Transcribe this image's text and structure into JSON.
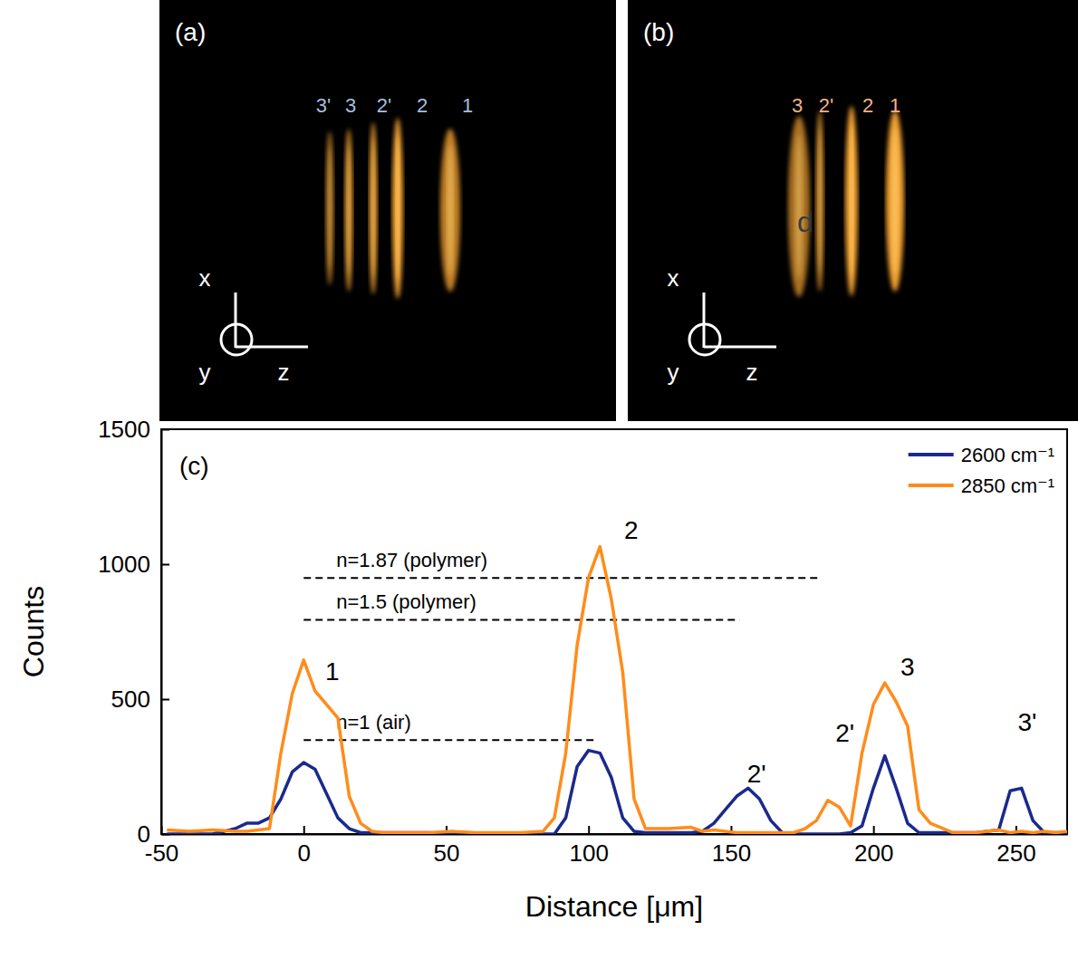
{
  "images": [
    {
      "letter": "(a)",
      "peak_labels": [
        "3'",
        "3",
        "2'",
        "2",
        "1"
      ],
      "axis_labels": {
        "x": "x",
        "y": "y",
        "z": "z"
      }
    },
    {
      "letter": "(b)",
      "peak_labels": [
        "3",
        "2'",
        "2",
        "1"
      ],
      "axis_labels": {
        "x": "x",
        "y": "y",
        "z": "z"
      },
      "annotation": "d"
    }
  ],
  "chart_data": {
    "type": "line",
    "panel_label": "(c)",
    "xlabel": "Distance [μm]",
    "ylabel": "Counts",
    "x": [
      -48,
      -40,
      -32,
      -24,
      -20,
      -16,
      -12,
      -8,
      -4,
      0,
      4,
      8,
      12,
      16,
      20,
      24,
      28,
      36,
      44,
      52,
      60,
      68,
      76,
      84,
      88,
      92,
      96,
      100,
      104,
      108,
      112,
      116,
      120,
      128,
      136,
      140,
      144,
      148,
      152,
      156,
      160,
      164,
      168,
      172,
      176,
      180,
      184,
      188,
      192,
      196,
      200,
      204,
      208,
      212,
      216,
      220,
      228,
      236,
      240,
      244,
      248,
      252,
      256,
      260,
      264,
      268
    ],
    "series": [
      {
        "name": "2600 cm⁻¹",
        "color": "#1a2a8c",
        "values": [
          0,
          0,
          0,
          20,
          40,
          40,
          60,
          130,
          230,
          265,
          240,
          150,
          60,
          20,
          5,
          5,
          5,
          5,
          5,
          0,
          0,
          0,
          0,
          0,
          0,
          60,
          250,
          310,
          300,
          210,
          60,
          10,
          5,
          5,
          5,
          10,
          40,
          90,
          140,
          170,
          130,
          50,
          5,
          0,
          0,
          0,
          0,
          0,
          5,
          30,
          170,
          290,
          170,
          40,
          5,
          5,
          5,
          5,
          10,
          15,
          160,
          170,
          50,
          5,
          5,
          5
        ]
      },
      {
        "name": "2850 cm⁻¹",
        "color": "#ff8c1a",
        "values": [
          15,
          10,
          15,
          10,
          10,
          15,
          20,
          300,
          520,
          645,
          530,
          480,
          430,
          140,
          40,
          10,
          5,
          5,
          5,
          10,
          5,
          5,
          5,
          10,
          60,
          300,
          700,
          950,
          1065,
          870,
          600,
          130,
          20,
          20,
          25,
          10,
          15,
          10,
          5,
          5,
          5,
          5,
          5,
          5,
          20,
          50,
          125,
          100,
          30,
          300,
          480,
          560,
          490,
          400,
          90,
          40,
          5,
          5,
          10,
          15,
          5,
          10,
          5,
          10,
          5,
          10
        ]
      }
    ],
    "xlim": [
      -50,
      268
    ],
    "xticks": [
      -50,
      0,
      50,
      100,
      150,
      200,
      250
    ],
    "ylim": [
      0,
      1500
    ],
    "yticks": [
      0,
      500,
      1000,
      1500
    ],
    "legend": "upper right",
    "annotations": [
      {
        "text": "n=1.87 (polymer)",
        "x": [
          0,
          181
        ],
        "y": 949
      },
      {
        "text": "n=1.5 (polymer)",
        "x": [
          0,
          153
        ],
        "y": 794
      },
      {
        "text": "n=1 (air)",
        "x": [
          0,
          103
        ],
        "y": 348
      }
    ],
    "peak_labels": [
      {
        "text": "1",
        "x": 10,
        "y": 601
      },
      {
        "text": "2",
        "x": 115,
        "y": 1125
      },
      {
        "text": "2'",
        "x": 159,
        "y": 223
      },
      {
        "text": "2'",
        "x": 190,
        "y": 375
      },
      {
        "text": "3",
        "x": 212,
        "y": 618
      },
      {
        "text": "3'",
        "x": 254,
        "y": 415
      }
    ]
  }
}
